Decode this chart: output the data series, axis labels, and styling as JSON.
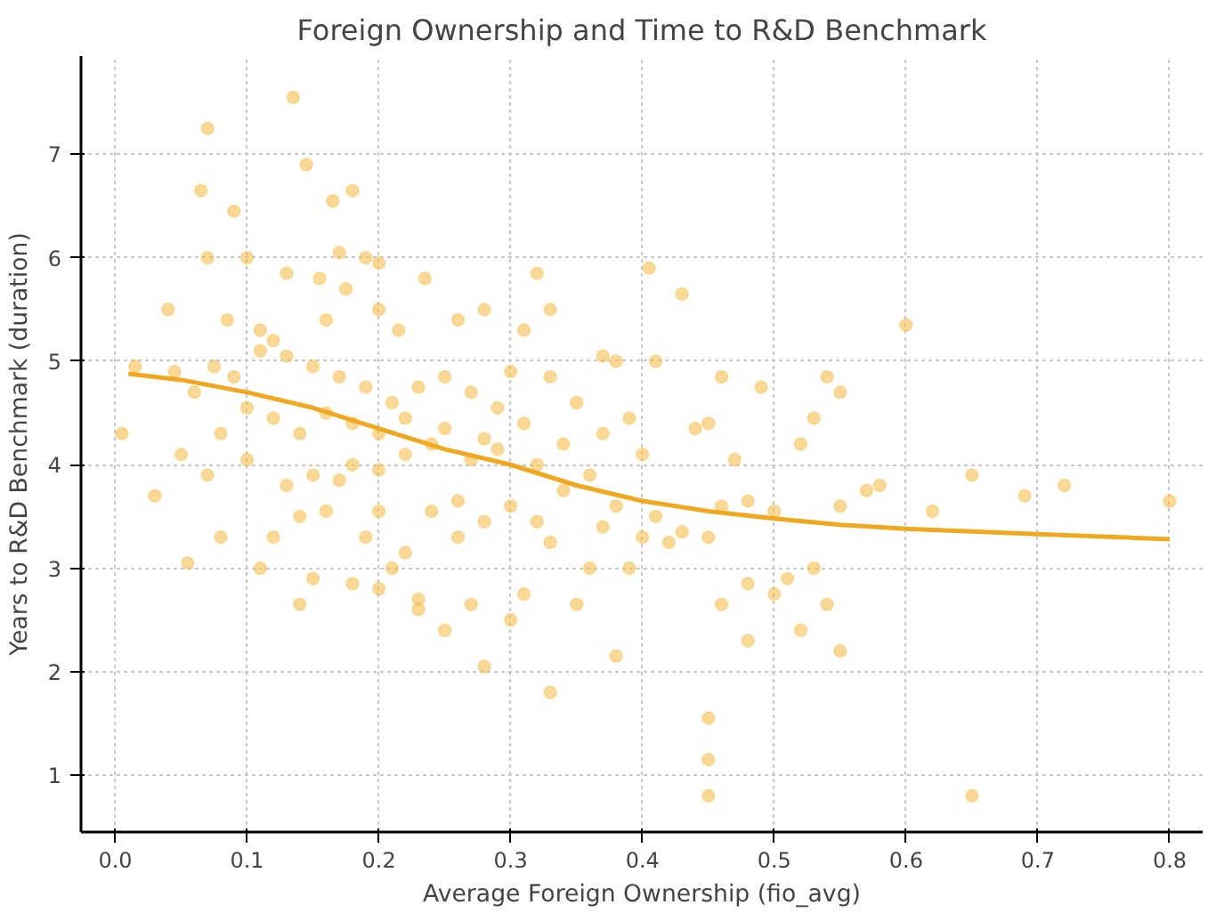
{
  "chart_data": {
    "type": "scatter",
    "title": "Foreign Ownership and Time to R&D Benchmark",
    "xlabel": "Average Foreign Ownership (fio_avg)",
    "ylabel": "Years to R&D Benchmark (duration)",
    "xlim": [
      -0.026,
      0.825
    ],
    "ylim": [
      0.45,
      7.95
    ],
    "xticks": [
      {
        "value": 0,
        "label": "0.0"
      },
      0.1,
      0.2,
      0.3,
      0.4,
      0.5,
      0.6,
      0.7,
      0.8
    ],
    "yticks": [
      1,
      2,
      3,
      4,
      5,
      6,
      7
    ],
    "grid": true,
    "series": [
      {
        "marker": "circle",
        "color": "#f5b942",
        "x": [
          0.135,
          0.07,
          0.145,
          0.065,
          0.18,
          0.09,
          0.165,
          0.07,
          0.1,
          0.17,
          0.19,
          0.2,
          0.155,
          0.13,
          0.175,
          0.235,
          0.32,
          0.405,
          0.43,
          0.6,
          0.04,
          0.085,
          0.12,
          0.11,
          0.16,
          0.2,
          0.215,
          0.26,
          0.28,
          0.31,
          0.33,
          0.37,
          0.38,
          0.41,
          0.54,
          0.46,
          0.49,
          0.65,
          0.69,
          0.72,
          0.8,
          0.57,
          0.58,
          0.62,
          0.55,
          0.52,
          0.53,
          0.55,
          0.47,
          0.45,
          0.44,
          0.48,
          0.46,
          0.5,
          0.43,
          0.42,
          0.45,
          0.51,
          0.48,
          0.5,
          0.53,
          0.54,
          0.52,
          0.55,
          0.46,
          0.48,
          0.45,
          0.45,
          0.45,
          0.65,
          0.38,
          0.33,
          0.25,
          0.28,
          0.3,
          0.31,
          0.35,
          0.39,
          0.36,
          0.33,
          0.3,
          0.28,
          0.26,
          0.24,
          0.22,
          0.21,
          0.2,
          0.23,
          0.26,
          0.19,
          0.18,
          0.15,
          0.14,
          0.12,
          0.11,
          0.055,
          0.005,
          0.03,
          0.05,
          0.08,
          0.07,
          0.1,
          0.13,
          0.15,
          0.17,
          0.18,
          0.2,
          0.22,
          0.24,
          0.27,
          0.29,
          0.32,
          0.34,
          0.36,
          0.37,
          0.39,
          0.4,
          0.38,
          0.41,
          0.35,
          0.33,
          0.3,
          0.29,
          0.27,
          0.25,
          0.23,
          0.21,
          0.19,
          0.17,
          0.15,
          0.13,
          0.11,
          0.09,
          0.075,
          0.06,
          0.045,
          0.015,
          0.1,
          0.12,
          0.14,
          0.16,
          0.18,
          0.2,
          0.22,
          0.25,
          0.28,
          0.31,
          0.34,
          0.4,
          0.37,
          0.32,
          0.27,
          0.23,
          0.2,
          0.16,
          0.14,
          0.08
        ],
        "values": [
          7.55,
          7.25,
          6.9,
          6.65,
          6.65,
          6.45,
          6.55,
          6.0,
          6.0,
          6.05,
          6.0,
          5.95,
          5.8,
          5.85,
          5.7,
          5.8,
          5.85,
          5.9,
          5.65,
          5.35,
          5.5,
          5.4,
          5.2,
          5.3,
          5.4,
          5.5,
          5.3,
          5.4,
          5.5,
          5.3,
          5.5,
          5.05,
          5.0,
          5.0,
          4.85,
          4.85,
          4.75,
          3.9,
          3.7,
          3.8,
          3.65,
          3.75,
          3.8,
          3.55,
          3.6,
          4.2,
          4.45,
          4.7,
          4.05,
          4.4,
          4.35,
          3.65,
          3.6,
          3.55,
          3.35,
          3.25,
          3.3,
          2.9,
          2.85,
          2.75,
          3.0,
          2.65,
          2.4,
          2.2,
          2.65,
          2.3,
          1.55,
          1.15,
          0.8,
          0.8,
          2.15,
          1.8,
          2.4,
          2.05,
          2.5,
          2.75,
          2.65,
          3.0,
          3.0,
          3.25,
          3.6,
          3.45,
          3.65,
          3.55,
          3.15,
          3.0,
          2.8,
          2.7,
          3.3,
          3.3,
          2.85,
          2.9,
          2.65,
          3.3,
          3.0,
          3.05,
          4.3,
          3.7,
          4.1,
          4.3,
          3.9,
          4.05,
          3.8,
          3.9,
          3.85,
          4.0,
          3.95,
          4.1,
          4.2,
          4.05,
          4.15,
          4.0,
          3.75,
          3.9,
          4.3,
          4.45,
          4.1,
          3.6,
          3.5,
          4.6,
          4.85,
          4.9,
          4.55,
          4.7,
          4.85,
          4.75,
          4.6,
          4.75,
          4.85,
          4.95,
          5.05,
          5.1,
          4.85,
          4.95,
          4.7,
          4.9,
          4.95,
          4.55,
          4.45,
          4.3,
          4.5,
          4.4,
          4.3,
          4.45,
          4.35,
          4.25,
          4.4,
          4.2,
          3.3,
          3.4,
          3.45,
          2.65,
          2.6,
          3.55,
          3.55,
          3.5,
          3.3
        ]
      },
      {
        "type": "line",
        "marker": "none",
        "color": "#f0a820",
        "line_style": "solid",
        "x": [
          0.01,
          0.05,
          0.1,
          0.15,
          0.2,
          0.25,
          0.3,
          0.35,
          0.4,
          0.45,
          0.5,
          0.55,
          0.6,
          0.7,
          0.8
        ],
        "values": [
          4.88,
          4.82,
          4.7,
          4.55,
          4.35,
          4.15,
          4.0,
          3.8,
          3.65,
          3.55,
          3.48,
          3.42,
          3.38,
          3.33,
          3.28
        ]
      }
    ]
  }
}
